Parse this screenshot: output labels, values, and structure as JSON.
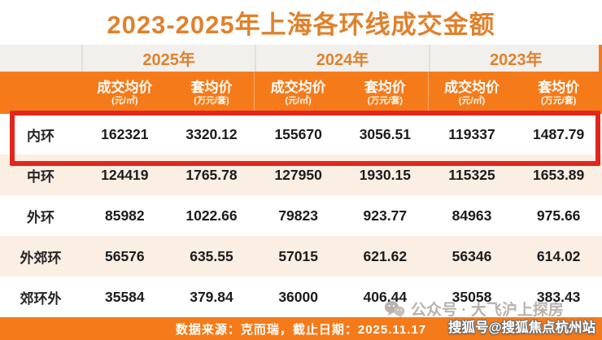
{
  "title": "2023-2025年上海各环线成交金额",
  "colors": {
    "accent_orange": "#f57b1a",
    "title_orange": "#e0812c",
    "highlight_red": "#e2261c",
    "row_alt_bg": "#fbeee3",
    "year_row_bg": "#f2f0ed"
  },
  "table": {
    "year_headers": [
      "2025年",
      "2024年",
      "2023年"
    ],
    "metric_headers": [
      {
        "label": "成交均价",
        "unit": "(元/㎡)"
      },
      {
        "label": "套均价",
        "unit": "(万元/套)"
      },
      {
        "label": "成交均价",
        "unit": "(元/㎡)"
      },
      {
        "label": "套均价",
        "unit": "(万元/套)"
      },
      {
        "label": "成交均价",
        "unit": "(元/㎡)"
      },
      {
        "label": "套均价",
        "unit": "(万元/套)"
      }
    ],
    "rows": [
      {
        "label": "内环",
        "highlighted": true,
        "values": [
          "162321",
          "3320.12",
          "155670",
          "3056.51",
          "119337",
          "1487.79"
        ]
      },
      {
        "label": "中环",
        "highlighted": false,
        "values": [
          "124419",
          "1765.78",
          "127950",
          "1930.15",
          "115325",
          "1653.89"
        ]
      },
      {
        "label": "外环",
        "highlighted": false,
        "values": [
          "85982",
          "1022.66",
          "79823",
          "923.77",
          "84963",
          "975.66"
        ]
      },
      {
        "label": "外郊环",
        "highlighted": false,
        "values": [
          "56576",
          "635.55",
          "57015",
          "621.62",
          "56346",
          "614.02"
        ]
      },
      {
        "label": "郊环外",
        "highlighted": false,
        "values": [
          "35584",
          "379.84",
          "36000",
          "406.44",
          "35058",
          "383.43"
        ]
      }
    ]
  },
  "footer": {
    "source_text": "数据来源：克而瑞，截止日期：2025.11.17"
  },
  "watermarks": {
    "wechat_text": "公众号 · 大飞沪上探房",
    "sohu_text": "搜狐号@搜狐焦点杭州站"
  },
  "chart_data": {
    "type": "table",
    "title": "2023-2025年上海各环线成交金额",
    "column_groups": [
      "2025年",
      "2024年",
      "2023年"
    ],
    "columns": [
      "2025年 成交均价(元/㎡)",
      "2025年 套均价(万元/套)",
      "2024年 成交均价(元/㎡)",
      "2024年 套均价(万元/套)",
      "2023年 成交均价(元/㎡)",
      "2023年 套均价(万元/套)"
    ],
    "row_labels": [
      "内环",
      "中环",
      "外环",
      "外郊环",
      "郊环外"
    ],
    "values": [
      [
        162321,
        3320.12,
        155670,
        3056.51,
        119337,
        1487.79
      ],
      [
        124419,
        1765.78,
        127950,
        1930.15,
        115325,
        1653.89
      ],
      [
        85982,
        1022.66,
        79823,
        923.77,
        84963,
        975.66
      ],
      [
        56576,
        635.55,
        57015,
        621.62,
        56346,
        614.02
      ],
      [
        35584,
        379.84,
        36000,
        406.44,
        35058,
        383.43
      ]
    ],
    "highlighted_row": "内环",
    "source_note": "数据来源：克而瑞，截止日期：2025.11.17"
  }
}
